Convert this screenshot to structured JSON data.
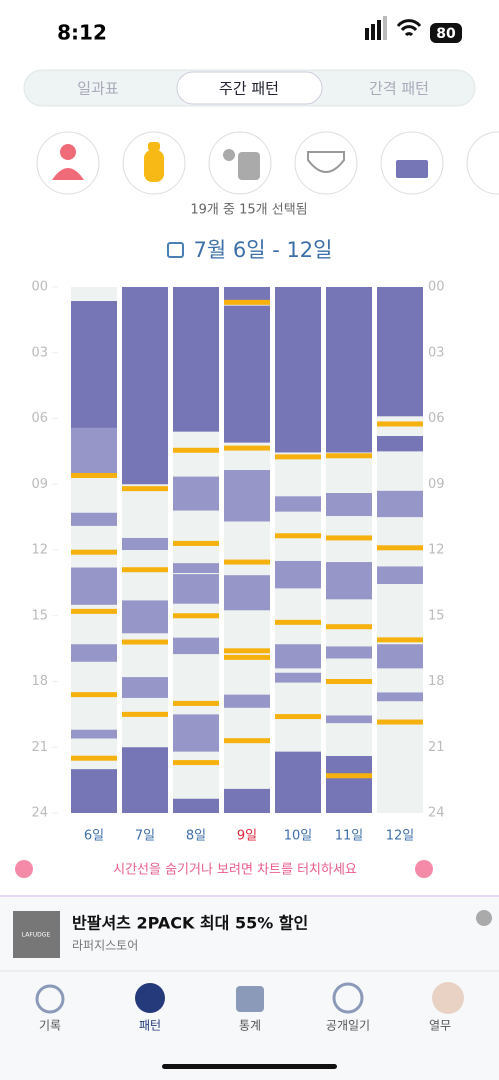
{
  "status": {
    "time": "8:12",
    "battery": "80"
  },
  "tabs": [
    "일과표",
    "주간 패턴",
    "간격 패턴"
  ],
  "selection_note": "19개 중 15개 선택됨",
  "date_range": "7월 6일 - 12일",
  "chart_data": {
    "type": "timeline",
    "ylim": [
      0,
      24
    ],
    "yticks": [
      {
        "value": 0,
        "label": "00"
      },
      {
        "value": 3,
        "label": "03"
      },
      {
        "value": 6,
        "label": "06"
      },
      {
        "value": 9,
        "label": "09"
      },
      {
        "value": 12,
        "label": "12"
      },
      {
        "value": 15,
        "label": "15"
      },
      {
        "value": 18,
        "label": "18"
      },
      {
        "value": 21,
        "label": "21"
      },
      {
        "value": 24,
        "label": "24"
      }
    ],
    "sleep_color": "#7675b6",
    "nap_color": "#9796c8",
    "feed_color": "#f6b10e",
    "days": [
      {
        "label": "6일",
        "color": "#3d6fa8",
        "sleep": [
          [
            0.64,
            6.43
          ],
          [
            22.0,
            24
          ]
        ],
        "nap": [
          [
            6.43,
            8.7
          ],
          [
            10.3,
            10.9
          ],
          [
            12.8,
            14.5
          ],
          [
            16.3,
            17.1
          ],
          [
            20.2,
            20.6
          ]
        ],
        "feed": [
          8.6,
          12.1,
          14.8,
          18.6,
          21.5
        ]
      },
      {
        "label": "7일",
        "color": "#3d6fa8",
        "sleep": [
          [
            0,
            9.0
          ],
          [
            21.0,
            24
          ]
        ],
        "nap": [
          [
            11.45,
            12.0
          ],
          [
            14.3,
            15.8
          ],
          [
            17.8,
            18.75
          ]
        ],
        "feed": [
          9.2,
          12.9,
          16.2,
          19.5
        ]
      },
      {
        "label": "8일",
        "color": "#3d6fa8",
        "sleep": [
          [
            0,
            6.6
          ],
          [
            23.35,
            24
          ]
        ],
        "nap": [
          [
            8.65,
            10.2
          ],
          [
            12.6,
            13.05
          ],
          [
            13.1,
            14.45
          ],
          [
            16.0,
            16.75
          ],
          [
            19.5,
            21.2
          ]
        ],
        "feed": [
          7.45,
          11.7,
          15.0,
          19.0,
          21.7
        ]
      },
      {
        "label": "9일",
        "color": "#e0283c",
        "sleep": [
          [
            0,
            0.6
          ],
          [
            0.85,
            7.1
          ],
          [
            22.9,
            24
          ]
        ],
        "nap": [
          [
            8.35,
            10.7
          ],
          [
            13.15,
            14.75
          ],
          [
            18.6,
            19.2
          ]
        ],
        "feed": [
          0.7,
          7.35,
          12.55,
          16.6,
          16.9,
          20.7
        ]
      },
      {
        "label": "10일",
        "color": "#3d6fa8",
        "sleep": [
          [
            0,
            7.55
          ],
          [
            21.2,
            24
          ]
        ],
        "nap": [
          [
            9.55,
            10.25
          ],
          [
            12.5,
            13.75
          ],
          [
            16.3,
            17.4
          ],
          [
            17.6,
            18.05
          ]
        ],
        "feed": [
          7.75,
          11.35,
          15.3,
          19.6
        ]
      },
      {
        "label": "11일",
        "color": "#3d6fa8",
        "sleep": [
          [
            0,
            7.55
          ],
          [
            21.4,
            24
          ]
        ],
        "nap": [
          [
            9.4,
            10.45
          ],
          [
            12.55,
            14.25
          ],
          [
            16.4,
            16.95
          ],
          [
            19.55,
            19.9
          ]
        ],
        "feed": [
          7.7,
          11.45,
          15.5,
          18.0,
          22.3
        ]
      },
      {
        "label": "12일",
        "color": "#3d6fa8",
        "sleep": [
          [
            0,
            5.9
          ],
          [
            6.8,
            7.5
          ]
        ],
        "nap": [
          [
            9.3,
            10.5
          ],
          [
            12.75,
            13.55
          ],
          [
            16.3,
            17.4
          ],
          [
            18.5,
            18.9
          ]
        ],
        "feed": [
          6.25,
          11.9,
          16.1,
          19.85
        ]
      }
    ]
  },
  "hint": "시간선을 숨기거나 보려면 차트를 터치하세요",
  "ad": {
    "logo": "LAFUDGE",
    "title": "반팔셔츠 2PACK 최대 55% 할인",
    "store": "라퍼지스토어"
  },
  "nav": [
    "기록",
    "패턴",
    "통계",
    "공개일기",
    "열무"
  ]
}
